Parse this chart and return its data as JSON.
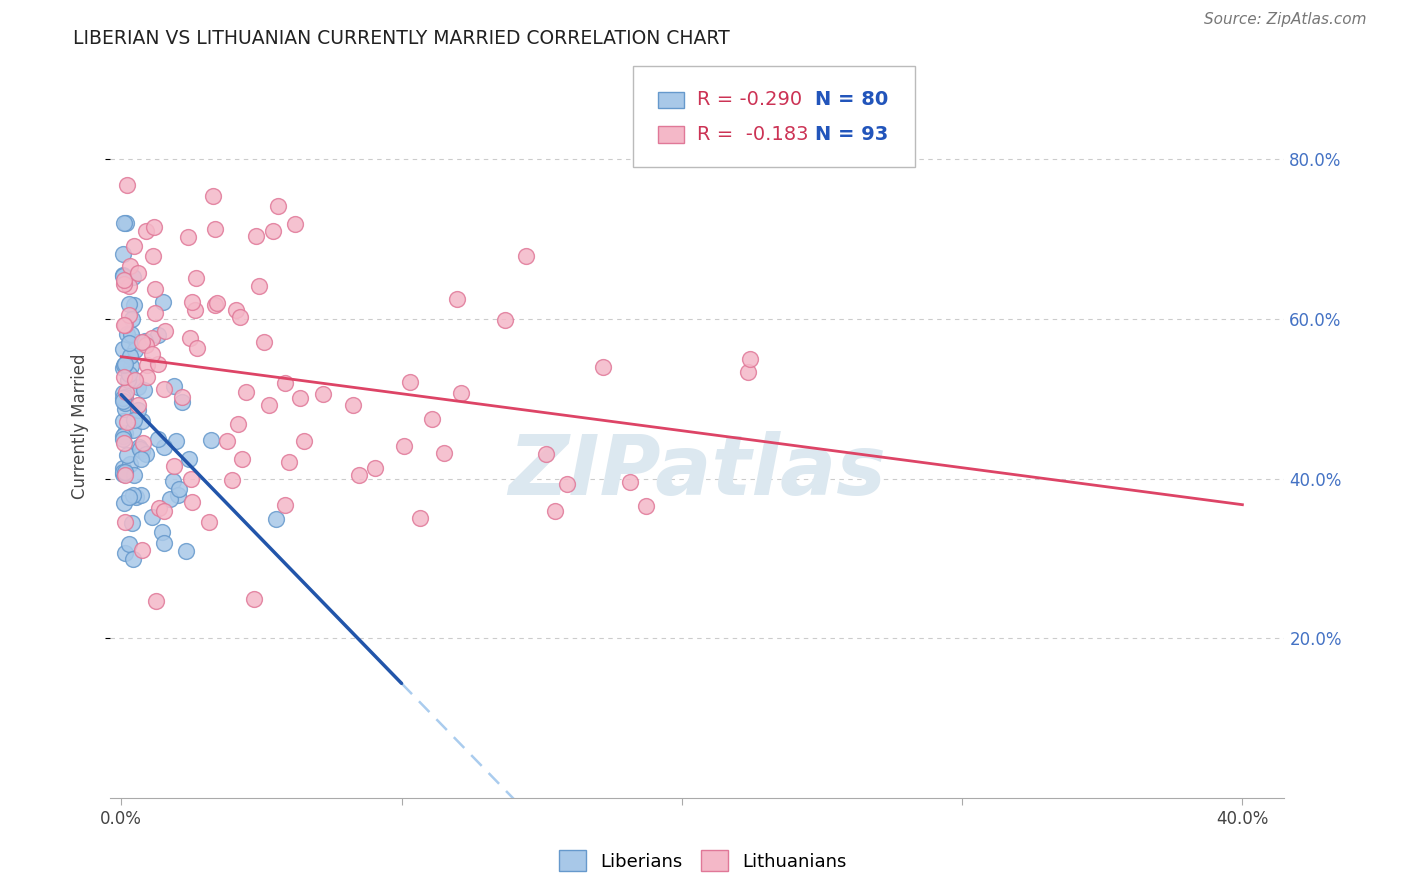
{
  "title": "LIBERIAN VS LITHUANIAN CURRENTLY MARRIED CORRELATION CHART",
  "source_text": "Source: ZipAtlas.com",
  "ylabel": "Currently Married",
  "liberian_color": "#a8c8e8",
  "liberian_edge": "#6699cc",
  "lithuanian_color": "#f4b8c8",
  "lithuanian_edge": "#e07898",
  "trend_blue_color": "#2255aa",
  "trend_pink_color": "#dd4466",
  "trend_dashed_color": "#aaccee",
  "watermark_text": "ZIPatlas",
  "watermark_color": "#dce8f0",
  "grid_color": "#cccccc",
  "background_color": "#ffffff",
  "r_lib": -0.29,
  "n_lib": 80,
  "r_lit": -0.183,
  "n_lit": 93,
  "legend_r1_text": "R = -0.290",
  "legend_n1_text": "N = 80",
  "legend_r2_text": "R =  -0.183",
  "legend_n2_text": "N = 93",
  "legend_r_color": "#cc3355",
  "legend_n_color": "#2255bb",
  "ytick_positions": [
    0.2,
    0.4,
    0.6,
    0.8
  ],
  "ytick_labels": [
    "20.0%",
    "40.0%",
    "60.0%",
    "80.0%"
  ],
  "xtick_positions": [
    0.0,
    0.1,
    0.2,
    0.3,
    0.4
  ],
  "xtick_labels": [
    "0.0%",
    "",
    "",
    "",
    "40.0%"
  ]
}
